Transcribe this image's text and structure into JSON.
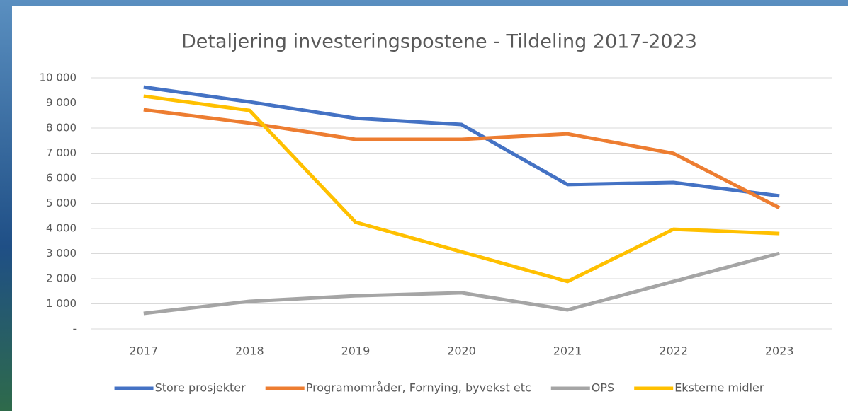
{
  "chart_data": {
    "type": "line",
    "title": "Detaljering investeringspostene - Tildeling 2017-2023",
    "categories": [
      "2017",
      "2018",
      "2019",
      "2020",
      "2021",
      "2022",
      "2023"
    ],
    "series": [
      {
        "name": "Store prosjekter",
        "color": "#4472c4",
        "values": [
          9630,
          9040,
          8390,
          8140,
          5750,
          5830,
          5300
        ]
      },
      {
        "name": "Programområder, Fornying, byvekst etc",
        "color": "#ed7d31",
        "values": [
          8730,
          8200,
          7550,
          7550,
          7770,
          6990,
          4820
        ]
      },
      {
        "name": "OPS",
        "color": "#a5a5a5",
        "values": [
          620,
          1100,
          1320,
          1440,
          760,
          1890,
          3010
        ]
      },
      {
        "name": "Eksterne midler",
        "color": "#ffc000",
        "values": [
          9270,
          8700,
          4250,
          3070,
          1890,
          3970,
          3800
        ]
      }
    ],
    "ylim": [
      0,
      10000
    ],
    "yticks": [
      {
        "value": 0,
        "label": "-"
      },
      {
        "value": 1000,
        "label": "1 000"
      },
      {
        "value": 2000,
        "label": "2 000"
      },
      {
        "value": 3000,
        "label": "3 000"
      },
      {
        "value": 4000,
        "label": "4 000"
      },
      {
        "value": 5000,
        "label": "5 000"
      },
      {
        "value": 6000,
        "label": "6 000"
      },
      {
        "value": 7000,
        "label": "7 000"
      },
      {
        "value": 8000,
        "label": "8 000"
      },
      {
        "value": 9000,
        "label": "9 000"
      },
      {
        "value": 10000,
        "label": "10 000"
      }
    ],
    "grid": true,
    "legend": "bottom"
  }
}
